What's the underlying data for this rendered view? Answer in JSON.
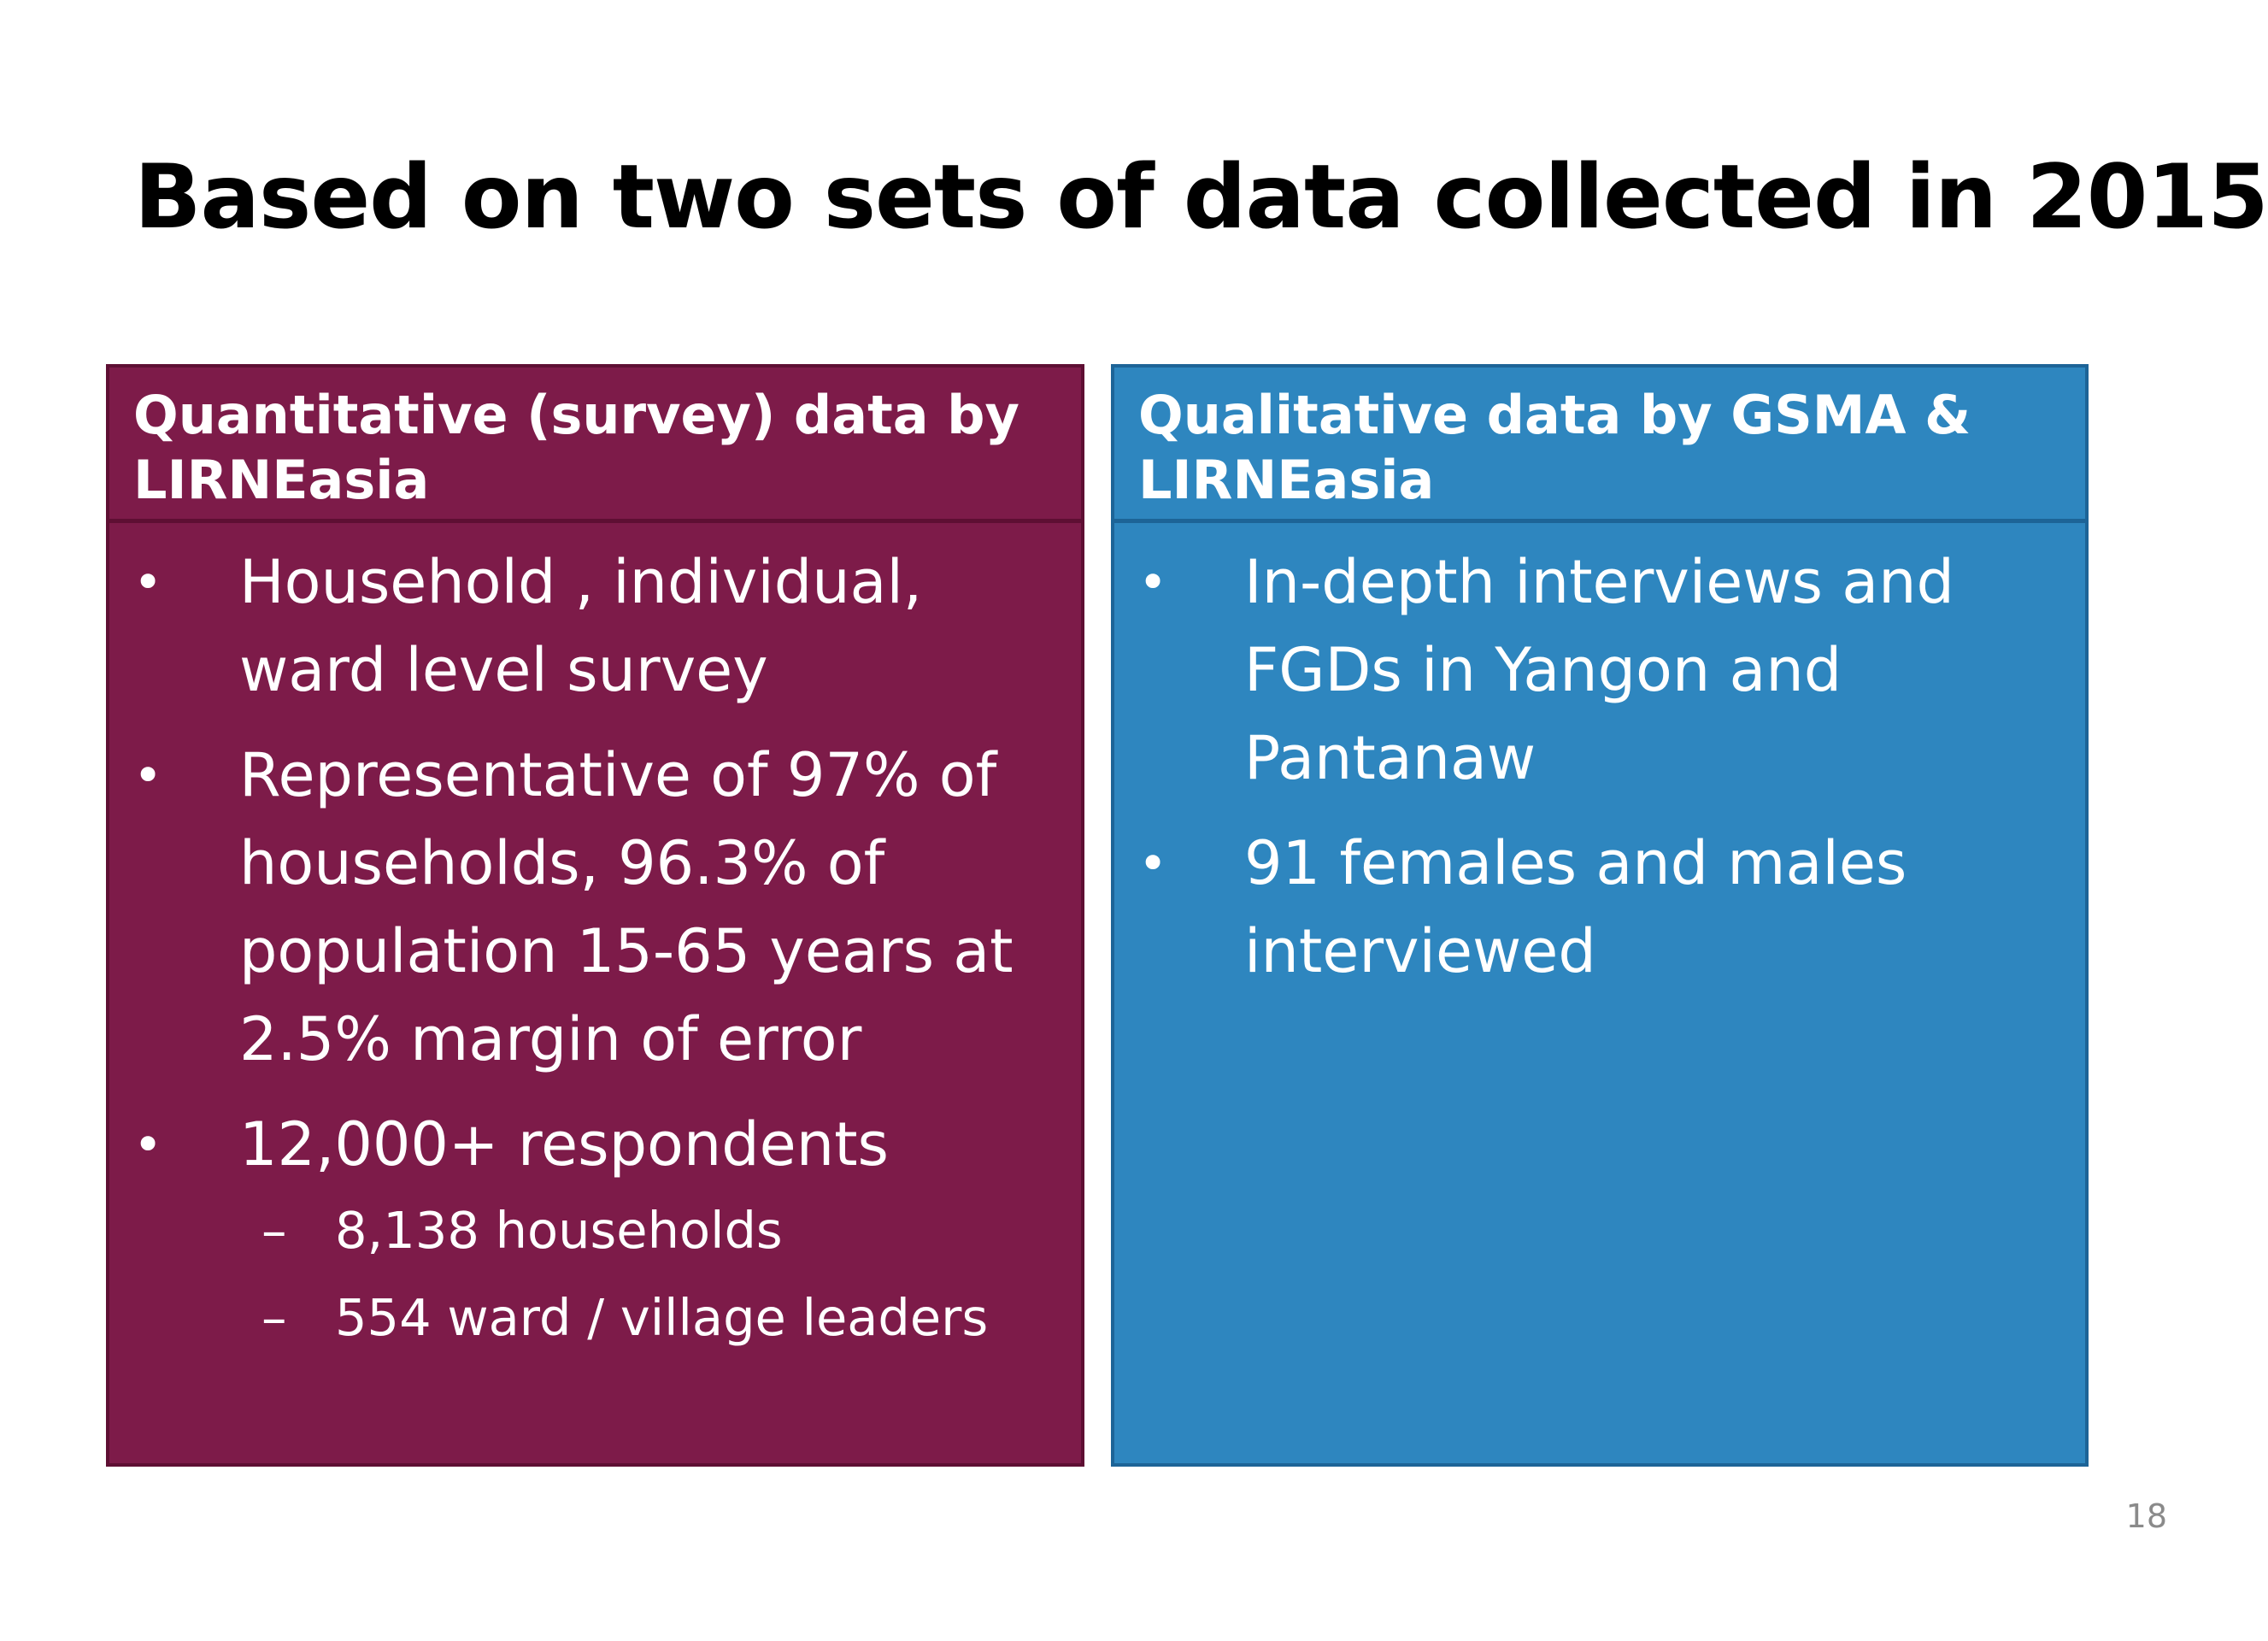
{
  "slide": {
    "title": "Based on two sets of data collected in 2015",
    "page_number": "18"
  },
  "left_panel": {
    "header": "Quantitative (survey) data by LIRNEasia",
    "bullets": [
      "Household , individual, ward level survey",
      "Representative of 97% of households, 96.3% of population 15-65 years at 2.5% margin of error",
      "12,000+ respondents"
    ],
    "sub_bullets": [
      "8,138 households",
      "554 ward / village leaders"
    ]
  },
  "right_panel": {
    "header": "Qualitative data by GSMA & LIRNEasia",
    "bullets": [
      "In-depth interviews and FGDs in Yangon and Pantanaw",
      "91 females and males interviewed"
    ]
  },
  "colors": {
    "left_panel_bg": "#7d1b49",
    "right_panel_bg": "#2e86bf",
    "title_text": "#000000",
    "panel_text": "#ffffff"
  }
}
